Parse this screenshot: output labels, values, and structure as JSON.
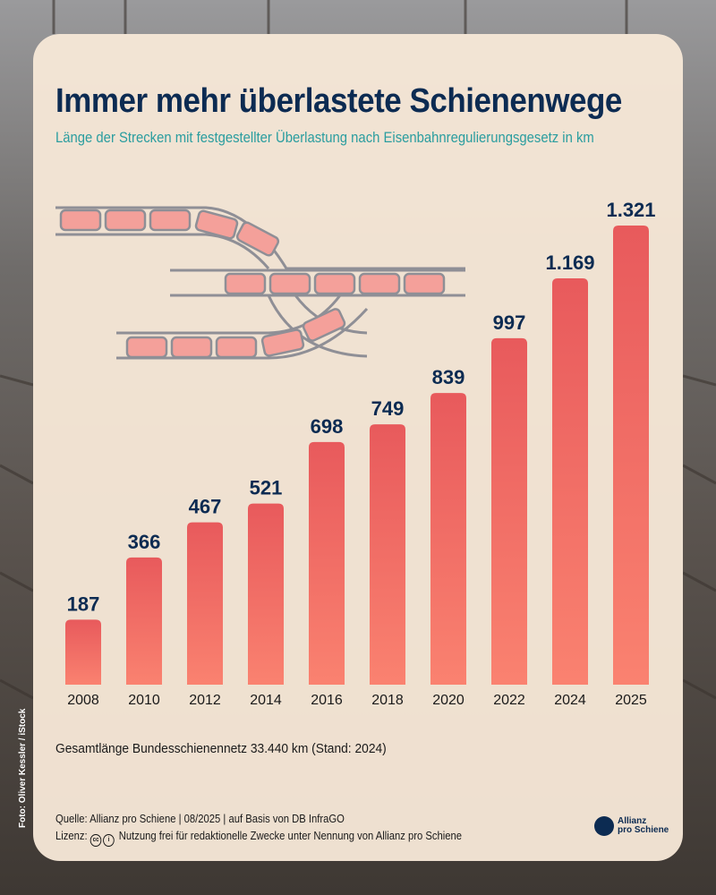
{
  "title": "Immer mehr überlastete Schienenwege",
  "subtitle": "Länge der Strecken mit festgestellter Überlastung nach Eisenbahnregulierungsgesetz in km",
  "chart_data": {
    "type": "bar",
    "categories": [
      "2008",
      "2010",
      "2012",
      "2014",
      "2016",
      "2018",
      "2020",
      "2022",
      "2024",
      "2025"
    ],
    "values": [
      187,
      366,
      467,
      521,
      698,
      749,
      839,
      997,
      1169,
      1321
    ],
    "data_labels": [
      "187",
      "366",
      "467",
      "521",
      "698",
      "749",
      "839",
      "997",
      "1.169",
      "1.321"
    ],
    "title": "Immer mehr überlastete Schienenwege",
    "ylabel": "",
    "xlabel": "",
    "ylim": [
      0,
      1321
    ],
    "grid": false,
    "colors": {
      "bar_top": "#e85a5c",
      "bar_bottom": "#fa8270",
      "labels": "#0c2b52"
    }
  },
  "note": "Gesamtlänge Bundesschienennetz 33.440 km (Stand: 2024)",
  "source": "Quelle: Allianz pro Schiene | 08/2025 | auf Basis von DB InfraGO",
  "license_label": "Lizenz:",
  "license_text": "Nutzung frei für redaktionelle Zwecke unter Nennung von Allianz pro Schiene",
  "photo_credit": "Foto: Oliver Kessler / iStock",
  "logo": {
    "line1": "Allianz",
    "line2": "pro Schiene"
  }
}
